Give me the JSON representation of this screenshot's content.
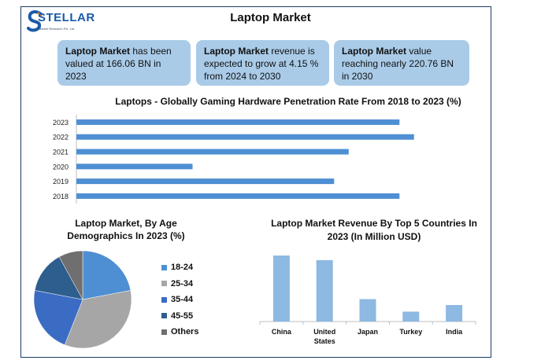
{
  "brand": {
    "name": "STELLAR",
    "tagline": "Market Research Pvt. Ltd."
  },
  "title": "Laptop Market",
  "cards": [
    {
      "bold": "Laptop Market",
      "text": " has been valued at 166.06 BN in 2023"
    },
    {
      "bold": "Laptop Market",
      "text": " revenue is expected to grow at 4.15 % from 2024 to 2030"
    },
    {
      "bold": "Laptop Market",
      "text": " value reaching nearly 220.76 BN in 2030"
    }
  ],
  "colors": {
    "card": "#a9cbe8",
    "bar": "#4e8fd3",
    "col": "#8db9e3",
    "pie": [
      "#4e8fd3",
      "#a6a6a6",
      "#3a6cc4",
      "#2e5e8e",
      "#6f6f6f"
    ]
  },
  "chart_data": [
    {
      "type": "bar",
      "orientation": "horizontal",
      "title": "Laptops - Globally Gaming Hardware Penetration Rate From 2018 to 2023 (%)",
      "categories": [
        "2023",
        "2022",
        "2021",
        "2020",
        "2019",
        "2018"
      ],
      "values": [
        89,
        93,
        75,
        32,
        71,
        89
      ],
      "xlim": [
        0,
        100
      ],
      "grid": false,
      "legend": "none"
    },
    {
      "type": "pie",
      "title": "Laptop Market, By Age Demographics In 2023 (%)",
      "labels": [
        "18-24",
        "25-34",
        "35-44",
        "45-55",
        "Others"
      ],
      "values": [
        22,
        34,
        22,
        14,
        8
      ],
      "legend": "right"
    },
    {
      "type": "bar",
      "orientation": "vertical",
      "title": "Laptop Market Revenue By Top 5 Countries In 2023 (In Million USD)",
      "categories": [
        "China",
        "United States",
        "Japan",
        "Turkey",
        "India"
      ],
      "values": [
        100,
        93,
        34,
        15,
        25
      ],
      "grid": false,
      "legend": "none"
    }
  ]
}
